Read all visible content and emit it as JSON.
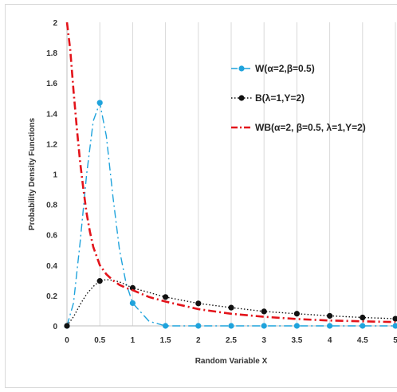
{
  "chart_data": {
    "type": "line",
    "xlabel": "Random Variable X",
    "ylabel": "Probability Density Functions",
    "xlim": [
      0,
      5
    ],
    "ylim": [
      0,
      2
    ],
    "x_ticks": [
      "0",
      "0.5",
      "1",
      "1.5",
      "2",
      "2.5",
      "3",
      "3.5",
      "4",
      "4.5",
      "5"
    ],
    "y_ticks": [
      "0",
      "0.2",
      "0.4",
      "0.6",
      "0.8",
      "1",
      "1.2",
      "1.4",
      "1.6",
      "1.8",
      "2"
    ],
    "grid": "vertical",
    "legend_position": "top-right",
    "series": [
      {
        "name": "W(α=2,β=0.5)",
        "color": "#1fa3dc",
        "line_style": "dash-dot",
        "marker": "circle",
        "x": [
          0,
          0.1,
          0.2,
          0.3,
          0.4,
          0.5,
          0.6,
          0.7,
          0.8,
          0.9,
          1,
          1.25,
          1.5,
          2,
          2.5,
          3,
          3.5,
          4,
          4.5,
          5
        ],
        "y": [
          0,
          0.15,
          0.55,
          1.0,
          1.35,
          1.47,
          1.25,
          0.85,
          0.5,
          0.28,
          0.15,
          0.03,
          0,
          0,
          0,
          0,
          0,
          0,
          0,
          0
        ],
        "marker_x": [
          0,
          0.5,
          1,
          1.5,
          2,
          2.5,
          3,
          3.5,
          4,
          4.5,
          5
        ],
        "marker_y": [
          0,
          1.47,
          0.15,
          0,
          0,
          0,
          0,
          0,
          0,
          0,
          0
        ]
      },
      {
        "name": "B(λ=1,Υ=2)",
        "color": "#111111",
        "line_style": "dotted",
        "marker": "circle",
        "x": [
          0,
          0.1,
          0.2,
          0.3,
          0.4,
          0.5,
          0.6,
          0.7,
          0.8,
          1,
          1.25,
          1.5,
          2,
          2.5,
          3,
          3.5,
          4,
          4.5,
          5
        ],
        "y": [
          0,
          0.06,
          0.14,
          0.21,
          0.26,
          0.296,
          0.305,
          0.3,
          0.29,
          0.25,
          0.22,
          0.19,
          0.148,
          0.12,
          0.095,
          0.08,
          0.066,
          0.055,
          0.047
        ],
        "marker_x": [
          0,
          0.5,
          1,
          1.5,
          2,
          2.5,
          3,
          3.5,
          4,
          4.5,
          5
        ],
        "marker_y": [
          0,
          0.296,
          0.25,
          0.19,
          0.148,
          0.12,
          0.095,
          0.08,
          0.066,
          0.055,
          0.047
        ]
      },
      {
        "name": "WB(α=2, β=0.5, λ=1,Υ=2)",
        "color": "#e3141b",
        "line_style": "dash-dot",
        "marker": "none",
        "x": [
          0,
          0.05,
          0.1,
          0.15,
          0.2,
          0.25,
          0.3,
          0.35,
          0.4,
          0.5,
          0.6,
          0.7,
          0.8,
          0.9,
          1,
          1.25,
          1.5,
          2,
          2.5,
          3,
          3.5,
          4,
          4.5,
          5
        ],
        "y": [
          2,
          1.82,
          1.55,
          1.3,
          1.08,
          0.9,
          0.74,
          0.62,
          0.52,
          0.4,
          0.34,
          0.3,
          0.27,
          0.25,
          0.235,
          0.19,
          0.16,
          0.11,
          0.08,
          0.06,
          0.045,
          0.035,
          0.03,
          0.025
        ]
      }
    ]
  }
}
